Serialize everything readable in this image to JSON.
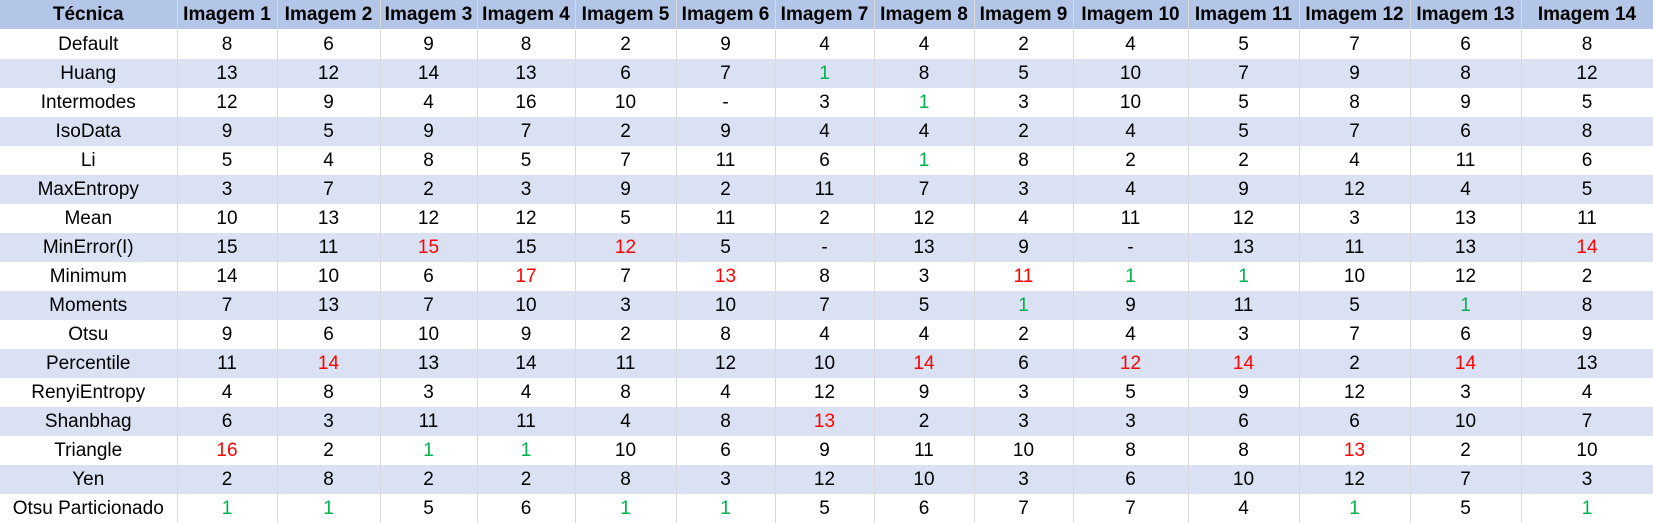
{
  "table": {
    "headers": [
      "Técnica",
      "Imagem 1",
      "Imagem 2",
      "Imagem 3",
      "Imagem 4",
      "Imagem 5",
      "Imagem 6",
      "Imagem 7",
      "Imagem 8",
      "Imagem 9",
      "Imagem 10",
      "Imagem 11",
      "Imagem 12",
      "Imagem 13",
      "Imagem 14"
    ],
    "colors": {
      "header_bg": "#b4c6e7",
      "band_bg": "#d9e1f2",
      "best": "#00b050",
      "worst": "#ff0000"
    },
    "rows": [
      {
        "label": "Default",
        "values": [
          "8",
          "6",
          "9",
          "8",
          "2",
          "9",
          "4",
          "4",
          "2",
          "4",
          "5",
          "7",
          "6",
          "8"
        ],
        "best": [],
        "worst": []
      },
      {
        "label": "Huang",
        "values": [
          "13",
          "12",
          "14",
          "13",
          "6",
          "7",
          "1",
          "8",
          "5",
          "10",
          "7",
          "9",
          "8",
          "12"
        ],
        "best": [
          6
        ],
        "worst": []
      },
      {
        "label": "Intermodes",
        "values": [
          "12",
          "9",
          "4",
          "16",
          "10",
          "-",
          "3",
          "1",
          "3",
          "10",
          "5",
          "8",
          "9",
          "5"
        ],
        "best": [
          7
        ],
        "worst": []
      },
      {
        "label": "IsoData",
        "values": [
          "9",
          "5",
          "9",
          "7",
          "2",
          "9",
          "4",
          "4",
          "2",
          "4",
          "5",
          "7",
          "6",
          "8"
        ],
        "best": [],
        "worst": []
      },
      {
        "label": "Li",
        "values": [
          "5",
          "4",
          "8",
          "5",
          "7",
          "11",
          "6",
          "1",
          "8",
          "2",
          "2",
          "4",
          "11",
          "6"
        ],
        "best": [
          7
        ],
        "worst": []
      },
      {
        "label": "MaxEntropy",
        "values": [
          "3",
          "7",
          "2",
          "3",
          "9",
          "2",
          "11",
          "7",
          "3",
          "4",
          "9",
          "12",
          "4",
          "5"
        ],
        "best": [],
        "worst": []
      },
      {
        "label": "Mean",
        "values": [
          "10",
          "13",
          "12",
          "12",
          "5",
          "11",
          "2",
          "12",
          "4",
          "11",
          "12",
          "3",
          "13",
          "11"
        ],
        "best": [],
        "worst": []
      },
      {
        "label": "MinError(I)",
        "values": [
          "15",
          "11",
          "15",
          "15",
          "12",
          "5",
          "-",
          "13",
          "9",
          "-",
          "13",
          "11",
          "13",
          "14"
        ],
        "best": [],
        "worst": [
          2,
          4,
          13
        ]
      },
      {
        "label": "Minimum",
        "values": [
          "14",
          "10",
          "6",
          "17",
          "7",
          "13",
          "8",
          "3",
          "11",
          "1",
          "1",
          "10",
          "12",
          "2"
        ],
        "best": [
          9,
          10
        ],
        "worst": [
          3,
          5,
          8
        ]
      },
      {
        "label": "Moments",
        "values": [
          "7",
          "13",
          "7",
          "10",
          "3",
          "10",
          "7",
          "5",
          "1",
          "9",
          "11",
          "5",
          "1",
          "8"
        ],
        "best": [
          8,
          12
        ],
        "worst": []
      },
      {
        "label": "Otsu",
        "values": [
          "9",
          "6",
          "10",
          "9",
          "2",
          "8",
          "4",
          "4",
          "2",
          "4",
          "3",
          "7",
          "6",
          "9"
        ],
        "best": [],
        "worst": []
      },
      {
        "label": "Percentile",
        "values": [
          "11",
          "14",
          "13",
          "14",
          "11",
          "12",
          "10",
          "14",
          "6",
          "12",
          "14",
          "2",
          "14",
          "13"
        ],
        "best": [],
        "worst": [
          1,
          7,
          9,
          10,
          12
        ]
      },
      {
        "label": "RenyiEntropy",
        "values": [
          "4",
          "8",
          "3",
          "4",
          "8",
          "4",
          "12",
          "9",
          "3",
          "5",
          "9",
          "12",
          "3",
          "4"
        ],
        "best": [],
        "worst": []
      },
      {
        "label": "Shanbhag",
        "values": [
          "6",
          "3",
          "11",
          "11",
          "4",
          "8",
          "13",
          "2",
          "3",
          "3",
          "6",
          "6",
          "10",
          "7"
        ],
        "best": [],
        "worst": [
          6
        ]
      },
      {
        "label": "Triangle",
        "values": [
          "16",
          "2",
          "1",
          "1",
          "10",
          "6",
          "9",
          "11",
          "10",
          "8",
          "8",
          "13",
          "2",
          "10"
        ],
        "best": [
          2,
          3
        ],
        "worst": [
          0,
          11
        ]
      },
      {
        "label": "Yen",
        "values": [
          "2",
          "8",
          "2",
          "2",
          "8",
          "3",
          "12",
          "10",
          "3",
          "6",
          "10",
          "12",
          "7",
          "3"
        ],
        "best": [],
        "worst": []
      },
      {
        "label": "Otsu Particionado",
        "values": [
          "1",
          "1",
          "5",
          "6",
          "1",
          "1",
          "5",
          "6",
          "7",
          "7",
          "4",
          "1",
          "5",
          "1"
        ],
        "best": [
          0,
          1,
          4,
          5,
          11,
          13
        ],
        "worst": []
      }
    ]
  }
}
